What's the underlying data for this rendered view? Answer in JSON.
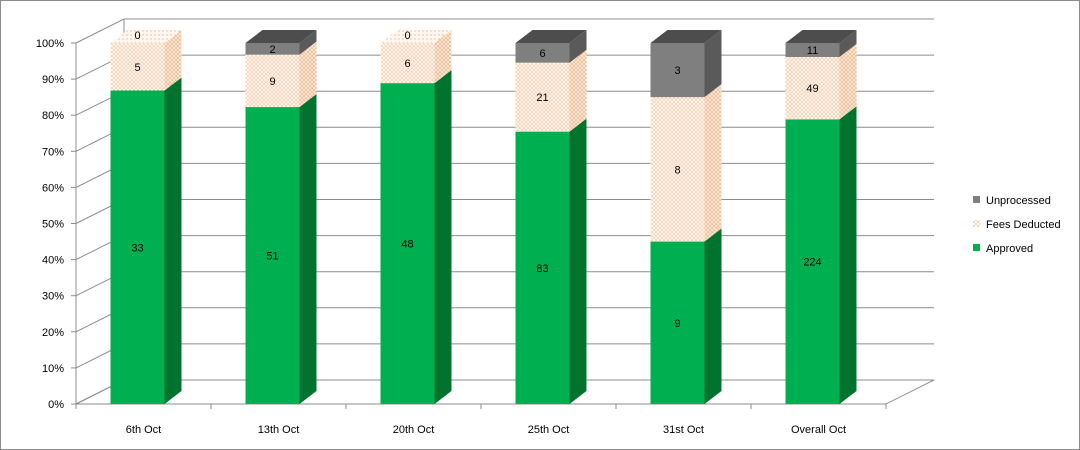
{
  "chart_data": {
    "type": "bar",
    "stacked": "percent",
    "style": "3d-column",
    "categories": [
      "6th Oct",
      "13th Oct",
      "20th Oct",
      "25th Oct",
      "31st Oct",
      "Overall Oct"
    ],
    "series": [
      {
        "name": "Approved",
        "values": [
          33,
          51,
          48,
          83,
          9,
          224
        ],
        "color": "#00b050",
        "side_color": "#00752f"
      },
      {
        "name": "Fees Deducted",
        "values": [
          5,
          9,
          6,
          21,
          8,
          49
        ],
        "color": "#fde4cc",
        "side_color": "#f3c9a2",
        "pattern": "dotted"
      },
      {
        "name": "Unprocessed",
        "values": [
          0,
          2,
          0,
          6,
          3,
          11
        ],
        "color": "#7f7f7f",
        "side_color": "#595959"
      }
    ],
    "ylim": [
      0,
      100
    ],
    "y_ticks": [
      "0%",
      "10%",
      "20%",
      "30%",
      "40%",
      "50%",
      "60%",
      "70%",
      "80%",
      "90%",
      "100%"
    ],
    "grid": true,
    "legend_position": "right",
    "legend_order": [
      "Unprocessed",
      "Fees Deducted",
      "Approved"
    ]
  }
}
